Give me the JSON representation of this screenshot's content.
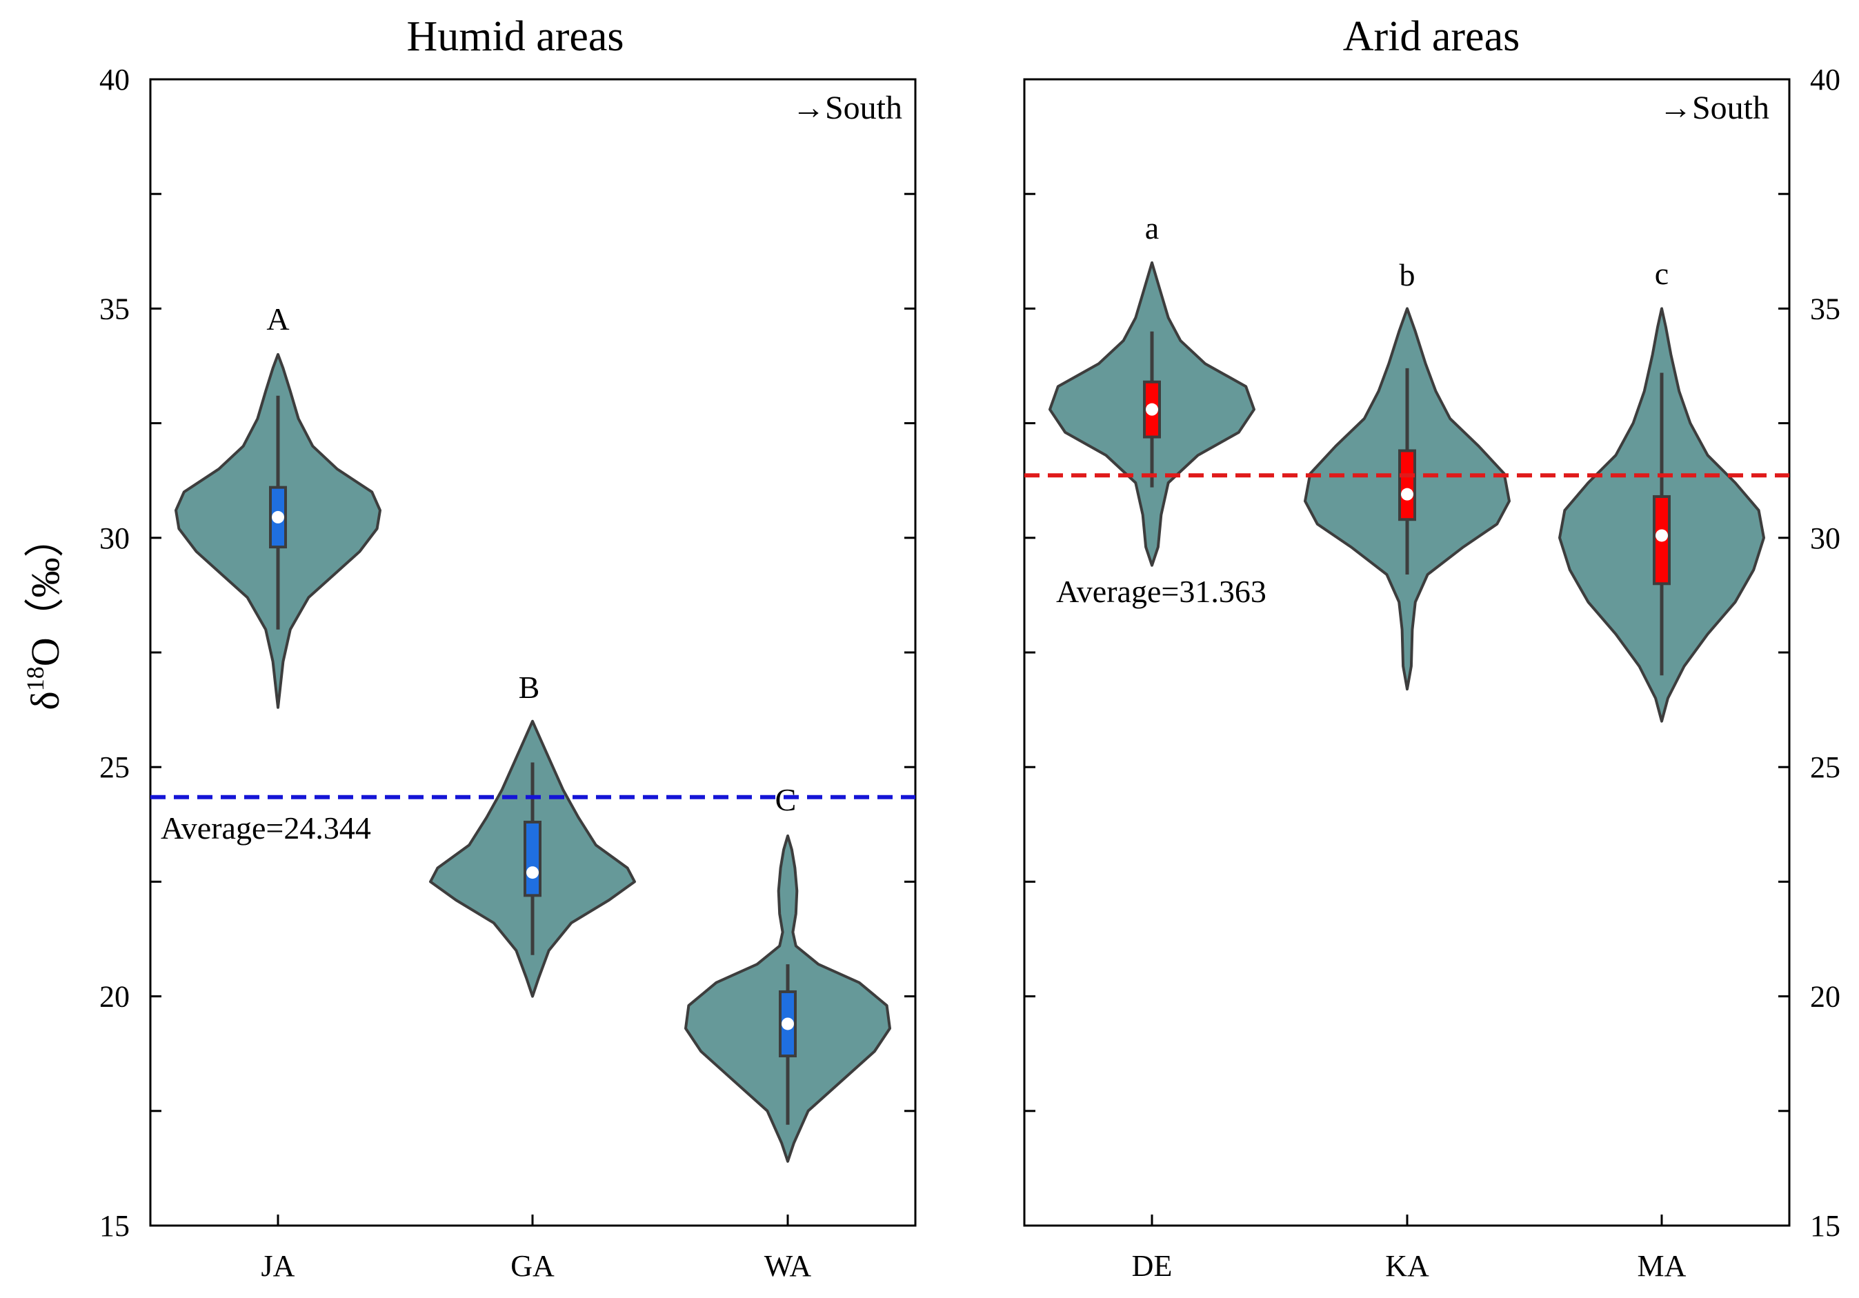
{
  "chart_data": {
    "type": "violin",
    "ylabel": "δ18O（‰）",
    "ylabel_parts": {
      "delta": "δ",
      "superscript": "18",
      "element": "O",
      "unit": "（‰）"
    },
    "ylim": [
      15,
      40
    ],
    "yticks": [
      "15",
      "20",
      "25",
      "30",
      "35",
      "40"
    ],
    "panels": [
      {
        "title": "Humid areas",
        "direction_label": "→South",
        "y_axis_side": "left",
        "average_value": 24.344,
        "average_label": "Average=24.344",
        "average_color": "#1515d6",
        "box_color": "#1f6fe0",
        "categories": [
          "JA",
          "GA",
          "WA"
        ],
        "violins": [
          {
            "category": "JA",
            "letter": "A",
            "min": 26.3,
            "max": 34.0,
            "whisker_low": 28.0,
            "whisker_high": 33.1,
            "q1": 29.8,
            "q3": 31.1,
            "median": 30.45,
            "profile": [
              [
                26.3,
                0.0
              ],
              [
                26.7,
                0.02
              ],
              [
                27.3,
                0.05
              ],
              [
                28.0,
                0.12
              ],
              [
                28.7,
                0.3
              ],
              [
                29.2,
                0.55
              ],
              [
                29.7,
                0.8
              ],
              [
                30.2,
                0.97
              ],
              [
                30.6,
                1.0
              ],
              [
                31.0,
                0.92
              ],
              [
                31.5,
                0.58
              ],
              [
                32.0,
                0.34
              ],
              [
                32.6,
                0.2
              ],
              [
                33.2,
                0.12
              ],
              [
                33.7,
                0.05
              ],
              [
                34.0,
                0.0
              ]
            ]
          },
          {
            "category": "GA",
            "letter": "B",
            "min": 20.0,
            "max": 26.0,
            "whisker_low": 20.9,
            "whisker_high": 25.1,
            "q1": 22.2,
            "q3": 23.8,
            "median": 22.7,
            "profile": [
              [
                20.0,
                0.0
              ],
              [
                20.4,
                0.06
              ],
              [
                21.0,
                0.16
              ],
              [
                21.6,
                0.38
              ],
              [
                22.1,
                0.75
              ],
              [
                22.5,
                1.0
              ],
              [
                22.8,
                0.93
              ],
              [
                23.3,
                0.62
              ],
              [
                23.9,
                0.45
              ],
              [
                24.5,
                0.3
              ],
              [
                25.1,
                0.18
              ],
              [
                25.6,
                0.08
              ],
              [
                26.0,
                0.0
              ]
            ]
          },
          {
            "category": "WA",
            "letter": "C",
            "min": 16.4,
            "max": 23.5,
            "whisker_low": 17.2,
            "whisker_high": 20.7,
            "q1": 18.7,
            "q3": 20.1,
            "median": 19.4,
            "profile": [
              [
                16.4,
                0.0
              ],
              [
                16.8,
                0.06
              ],
              [
                17.5,
                0.2
              ],
              [
                18.2,
                0.55
              ],
              [
                18.8,
                0.85
              ],
              [
                19.3,
                1.0
              ],
              [
                19.8,
                0.97
              ],
              [
                20.3,
                0.7
              ],
              [
                20.7,
                0.3
              ],
              [
                21.1,
                0.08
              ],
              [
                21.4,
                0.05
              ],
              [
                21.8,
                0.08
              ],
              [
                22.3,
                0.09
              ],
              [
                22.8,
                0.07
              ],
              [
                23.2,
                0.04
              ],
              [
                23.5,
                0.0
              ]
            ]
          }
        ]
      },
      {
        "title": "Arid areas",
        "direction_label": "→South",
        "y_axis_side": "right",
        "average_value": 31.363,
        "average_label": "Average=31.363",
        "average_color": "#e01a1a",
        "box_color": "#ff0000",
        "categories": [
          "DE",
          "KA",
          "MA"
        ],
        "violins": [
          {
            "category": "DE",
            "letter": "a",
            "min": 29.4,
            "max": 36.0,
            "whisker_low": 31.1,
            "whisker_high": 34.5,
            "q1": 32.2,
            "q3": 33.4,
            "median": 32.8,
            "profile": [
              [
                29.4,
                0.0
              ],
              [
                29.8,
                0.06
              ],
              [
                30.5,
                0.09
              ],
              [
                31.2,
                0.16
              ],
              [
                31.8,
                0.45
              ],
              [
                32.3,
                0.85
              ],
              [
                32.8,
                1.0
              ],
              [
                33.3,
                0.92
              ],
              [
                33.8,
                0.52
              ],
              [
                34.3,
                0.28
              ],
              [
                34.8,
                0.16
              ],
              [
                35.4,
                0.08
              ],
              [
                36.0,
                0.0
              ]
            ]
          },
          {
            "category": "KA",
            "letter": "b",
            "min": 26.7,
            "max": 35.0,
            "whisker_low": 29.2,
            "whisker_high": 33.7,
            "q1": 30.4,
            "q3": 31.9,
            "median": 30.95,
            "profile": [
              [
                26.7,
                0.0
              ],
              [
                27.2,
                0.04
              ],
              [
                28.0,
                0.05
              ],
              [
                28.6,
                0.08
              ],
              [
                29.2,
                0.2
              ],
              [
                29.8,
                0.55
              ],
              [
                30.3,
                0.88
              ],
              [
                30.8,
                1.0
              ],
              [
                31.4,
                0.95
              ],
              [
                32.0,
                0.7
              ],
              [
                32.6,
                0.42
              ],
              [
                33.2,
                0.28
              ],
              [
                33.8,
                0.18
              ],
              [
                34.5,
                0.08
              ],
              [
                35.0,
                0.0
              ]
            ]
          },
          {
            "category": "MA",
            "letter": "c",
            "min": 26.0,
            "max": 35.0,
            "whisker_low": 27.0,
            "whisker_high": 33.6,
            "q1": 29.0,
            "q3": 30.9,
            "median": 30.05,
            "profile": [
              [
                26.0,
                0.0
              ],
              [
                26.5,
                0.06
              ],
              [
                27.2,
                0.22
              ],
              [
                27.9,
                0.45
              ],
              [
                28.6,
                0.72
              ],
              [
                29.3,
                0.9
              ],
              [
                30.0,
                1.0
              ],
              [
                30.6,
                0.95
              ],
              [
                31.2,
                0.72
              ],
              [
                31.8,
                0.45
              ],
              [
                32.5,
                0.28
              ],
              [
                33.2,
                0.17
              ],
              [
                34.0,
                0.09
              ],
              [
                34.6,
                0.04
              ],
              [
                35.0,
                0.0
              ]
            ]
          }
        ]
      }
    ]
  }
}
